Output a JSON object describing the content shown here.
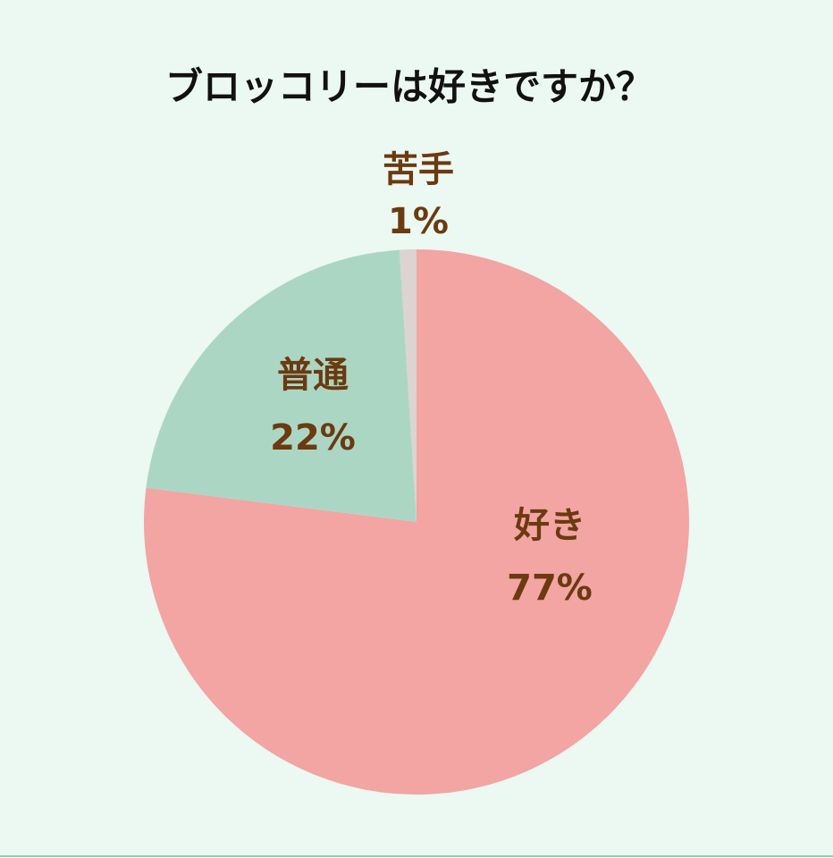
{
  "chart_data": {
    "type": "pie",
    "title": "ブロッコリーは好きですか？",
    "categories": [
      "好き",
      "普通",
      "苦手"
    ],
    "values": [
      77,
      22,
      1
    ],
    "value_labels": [
      "77%",
      "22%",
      "1%"
    ],
    "colors": [
      "#f2a5a3",
      "#acd6c4",
      "#dcd3d2"
    ]
  }
}
